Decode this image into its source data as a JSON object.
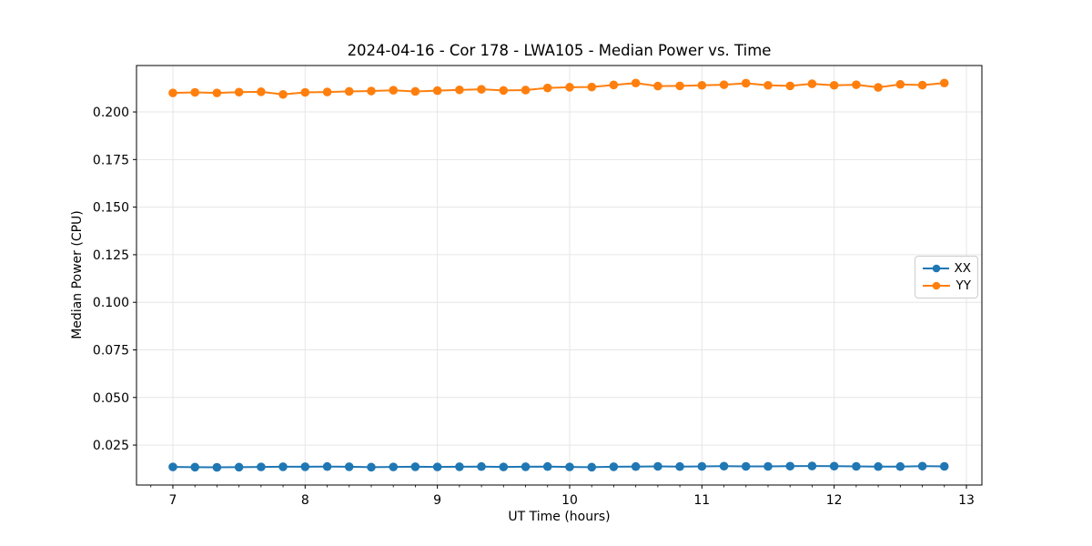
{
  "figure": {
    "background": "#ffffff"
  },
  "chart_data": {
    "type": "line",
    "title": "2024-04-16 - Cor 178 - LWA105 - Median Power vs. Time",
    "xlabel": "UT Time (hours)",
    "ylabel": "Median Power (CPU)",
    "xlim": [
      6.725,
      13.117
    ],
    "ylim": [
      0.004,
      0.2244
    ],
    "x_ticks": [
      7,
      8,
      9,
      10,
      11,
      12,
      13
    ],
    "x_tick_labels": [
      "7",
      "8",
      "9",
      "10",
      "11",
      "12",
      "13"
    ],
    "y_ticks": [
      0.025,
      0.05,
      0.075,
      0.1,
      0.125,
      0.15,
      0.175,
      0.2
    ],
    "y_tick_labels": [
      "0.025",
      "0.050",
      "0.075",
      "0.100",
      "0.125",
      "0.150",
      "0.175",
      "0.200"
    ],
    "x_minor_divisions_per_major": 6,
    "grid": true,
    "grid_color": "#e6e6e6",
    "spine_color": "#000000",
    "legend": {
      "position": "center right",
      "entries": [
        "XX",
        "YY"
      ]
    },
    "x": [
      7.0,
      7.167,
      7.333,
      7.5,
      7.667,
      7.833,
      8.0,
      8.167,
      8.333,
      8.5,
      8.667,
      8.833,
      9.0,
      9.167,
      9.333,
      9.5,
      9.667,
      9.833,
      10.0,
      10.167,
      10.333,
      10.5,
      10.667,
      10.833,
      11.0,
      11.167,
      11.333,
      11.5,
      11.667,
      11.833,
      12.0,
      12.167,
      12.333,
      12.5,
      12.667,
      12.833
    ],
    "series": [
      {
        "name": "XX",
        "color": "#1f77b4",
        "marker": "circle",
        "values": [
          0.0135,
          0.0134,
          0.0133,
          0.0134,
          0.0135,
          0.0136,
          0.0136,
          0.0137,
          0.0136,
          0.0134,
          0.0135,
          0.0136,
          0.0135,
          0.0136,
          0.0137,
          0.0135,
          0.0136,
          0.0137,
          0.0135,
          0.0134,
          0.0136,
          0.0137,
          0.0138,
          0.0137,
          0.0138,
          0.0139,
          0.0138,
          0.0138,
          0.0139,
          0.014,
          0.0139,
          0.0138,
          0.0137,
          0.0137,
          0.0139,
          0.0138
        ]
      },
      {
        "name": "YY",
        "color": "#ff7f0e",
        "marker": "circle",
        "values": [
          0.21,
          0.2103,
          0.21,
          0.2104,
          0.2106,
          0.2092,
          0.2103,
          0.2105,
          0.2108,
          0.211,
          0.2114,
          0.2108,
          0.2112,
          0.2116,
          0.2119,
          0.2113,
          0.2115,
          0.2126,
          0.213,
          0.2131,
          0.2142,
          0.2152,
          0.2136,
          0.2137,
          0.214,
          0.2143,
          0.2151,
          0.214,
          0.2137,
          0.2148,
          0.214,
          0.2143,
          0.2129,
          0.2145,
          0.2141,
          0.2152
        ]
      }
    ]
  }
}
